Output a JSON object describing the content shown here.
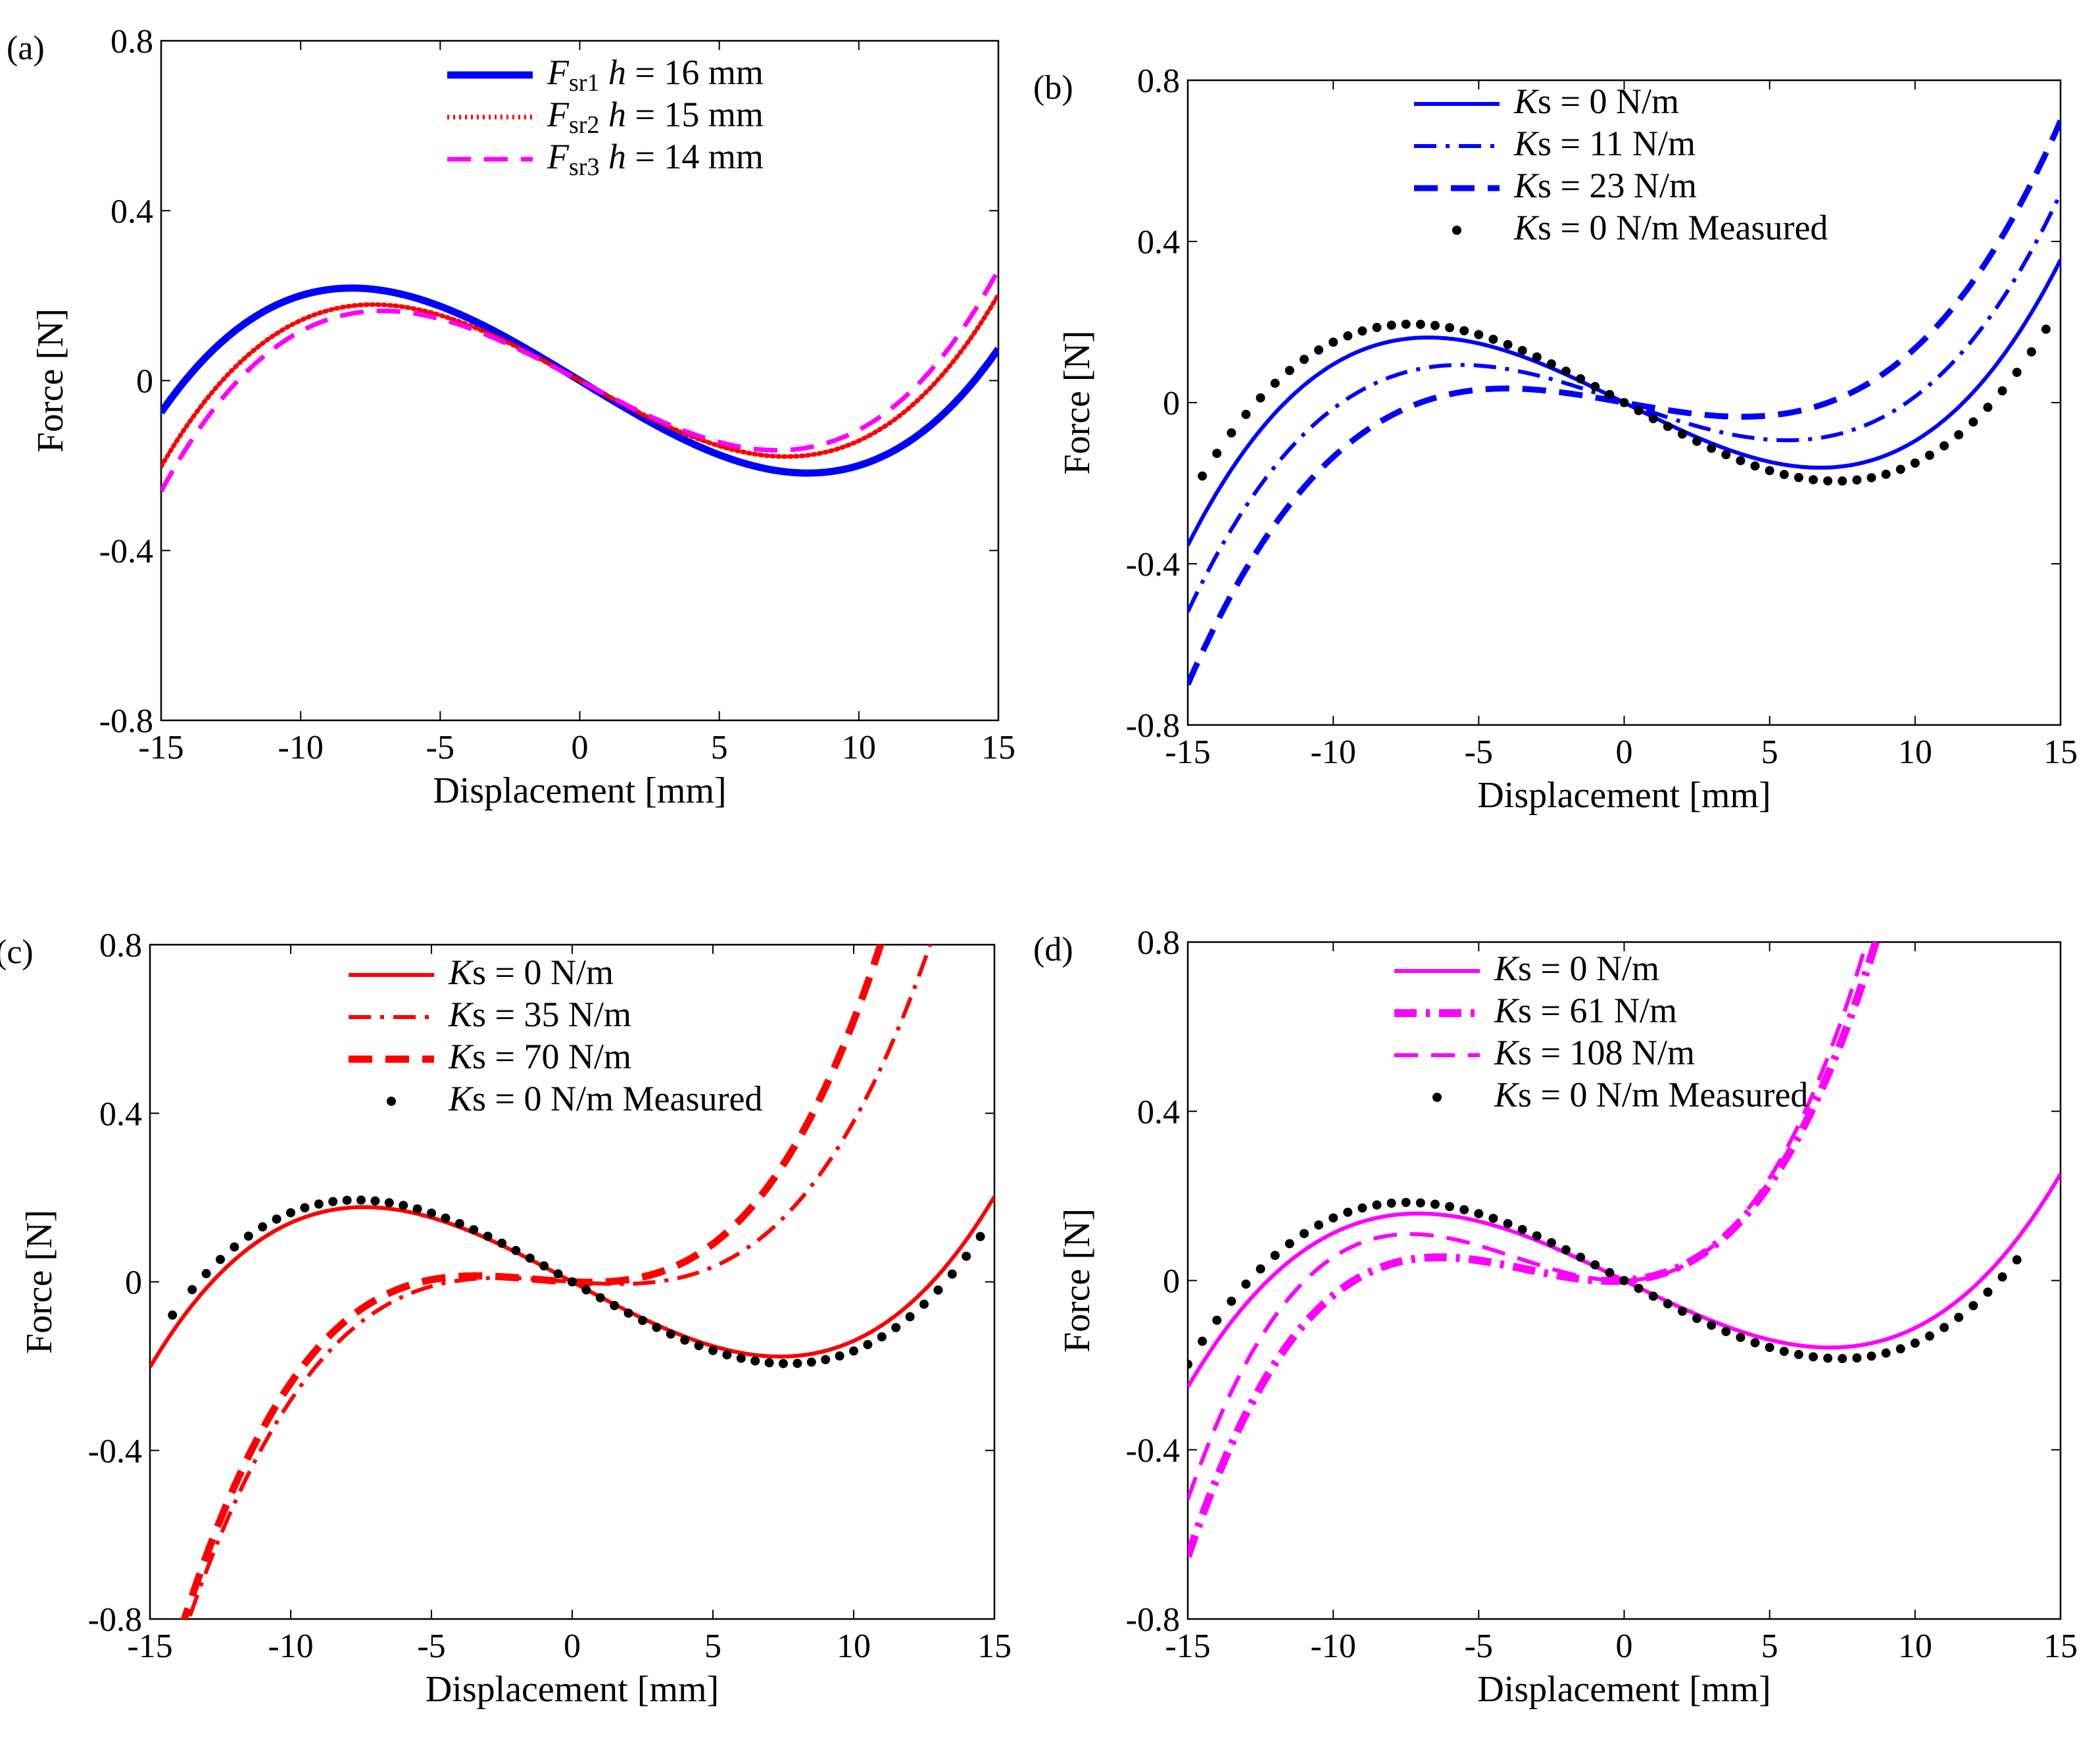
{
  "chart_data": [
    {
      "type": "line",
      "panel_label": "(a)",
      "xlabel": "Displacement [mm]",
      "ylabel": "Force [N]",
      "xlim": [
        -15,
        15
      ],
      "ylim": [
        -0.8,
        0.8
      ],
      "xticks": [
        "-15",
        "-10",
        "-5",
        "0",
        "5",
        "10",
        "15"
      ],
      "yticks": [
        "0.8",
        "0.4",
        "0",
        "-0.4",
        "-0.8"
      ],
      "series": [
        {
          "name": "F_sr1 h = 16 mm",
          "label": {
            "sym": "F",
            "sub": "sr1",
            "var": "h",
            "rest": " = 16 mm"
          },
          "color": "#0000ff",
          "style": "solid",
          "width": 11,
          "a": 0.0002,
          "b": 0.04,
          "c": 0
        },
        {
          "name": "F_sr2 h = 15 mm",
          "label": {
            "sym": "F",
            "sub": "sr2",
            "var": "h",
            "rest": " = 15 mm"
          },
          "color": "#ff0000",
          "style": "dotted",
          "width": 7,
          "a": 0.0002213,
          "b": 0.0363,
          "c": 0
        },
        {
          "name": "F_sr3 h = 14 mm",
          "label": {
            "sym": "F",
            "sub": "sr3",
            "var": "h",
            "rest": " = 14 mm"
          },
          "color": "#ff00ff",
          "style": "dashed",
          "width": 7,
          "a": 0.000232,
          "b": 0.0348,
          "c": 0
        }
      ]
    },
    {
      "type": "line",
      "panel_label": "(b)",
      "xlabel": "Displacement [mm]",
      "ylabel": "Force [N]",
      "xlim": [
        -15,
        15
      ],
      "ylim": [
        -0.8,
        0.8
      ],
      "xticks": [
        "-15",
        "-10",
        "-5",
        "0",
        "5",
        "10",
        "15"
      ],
      "yticks": [
        "0.8",
        "0.4",
        "0",
        "-0.4",
        "-0.8"
      ],
      "series": [
        {
          "name": "Ks = 0 N/m",
          "label": {
            "sym": "K",
            "rest": "s = 0 N/m"
          },
          "color": "#0000ff",
          "style": "solid",
          "width": 6,
          "a": 0.000265,
          "b": 0.036,
          "c": 0
        },
        {
          "name": "Ks = 11 N/m",
          "label": {
            "sym": "K",
            "rest": "s = 11 N/m"
          },
          "color": "#0000ff",
          "style": "dashdot",
          "width": 6,
          "a": 0.000265,
          "b": 0.025,
          "c": 0
        },
        {
          "name": "Ks = 23 N/m",
          "label": {
            "sym": "K",
            "rest": "s = 23 N/m"
          },
          "color": "#0000ff",
          "style": "dashed",
          "width": 9,
          "a": 0.000265,
          "b": 0.013,
          "c": 0
        }
      ],
      "measured": {
        "name": "Ks = 0 N/m Measured",
        "label": {
          "sym": "K",
          "rest": "s = 0 N/m Measured"
        },
        "color": "#000000",
        "a": 0.00025,
        "b": 0.04,
        "c": 0,
        "x": [
          -14.5,
          -14,
          -13.5,
          -13,
          -12.5,
          -12,
          -11.5,
          -11,
          -10.5,
          -10,
          -9.5,
          -9,
          -8.5,
          -8,
          -7.5,
          -7,
          -6.5,
          -6,
          -5.5,
          -5,
          -4.5,
          -4,
          -3.5,
          -3,
          -2.5,
          -2,
          -1.5,
          -1,
          -0.5,
          0,
          0.5,
          1,
          1.5,
          2,
          2.5,
          3,
          3.5,
          4,
          4.5,
          5,
          5.5,
          6,
          6.5,
          7,
          7.5,
          8,
          8.5,
          9,
          9.5,
          10,
          10.5,
          11,
          11.5,
          12,
          12.5,
          13,
          13.5,
          14,
          14.5
        ]
      }
    },
    {
      "type": "line",
      "panel_label": "(c)",
      "xlabel": "Displacement [mm]",
      "ylabel": "Force [N]",
      "xlim": [
        -15,
        15
      ],
      "ylim": [
        -0.8,
        0.8
      ],
      "xticks": [
        "-15",
        "-10",
        "-5",
        "0",
        "5",
        "10",
        "15"
      ],
      "yticks": [
        "0.8",
        "0.4",
        "0",
        "-0.4",
        "-0.8"
      ],
      "series": [
        {
          "name": "Ks = 0 N/m",
          "label": {
            "sym": "K",
            "rest": "s = 0 N/m"
          },
          "color": "#ff0000",
          "style": "solid",
          "width": 6,
          "a": 0.00022,
          "b": 0.036,
          "c": 0
        },
        {
          "name": "Ks = 35 N/m",
          "label": {
            "sym": "K",
            "rest": "s = 35 N/m"
          },
          "color": "#ff0000",
          "style": "dashdot",
          "width": 6,
          "a": 0.00038,
          "b": 0.0049,
          "c": 0.0005
        },
        {
          "name": "Ks = 70 N/m",
          "label": {
            "sym": "K",
            "rest": "s = 70 N/m"
          },
          "color": "#ff0000",
          "style": "dashed",
          "width": 11,
          "a": 0.00046,
          "b": 0.003,
          "c": 0.0019
        }
      ],
      "measured": {
        "name": "Ks = 0 N/m Measured",
        "label": {
          "sym": "K",
          "rest": "s = 0 N/m Measured"
        },
        "color": "#000000",
        "a": 0.000216,
        "b": 0.038,
        "c": 0,
        "x": [
          -14.2,
          -13.5,
          -13,
          -12.5,
          -12,
          -11.5,
          -11,
          -10.5,
          -10,
          -9.5,
          -9,
          -8.5,
          -8,
          -7.5,
          -7,
          -6.5,
          -6,
          -5.5,
          -5,
          -4.5,
          -4,
          -3.5,
          -3,
          -2.5,
          -2,
          -1.5,
          -1,
          -0.5,
          0,
          0.5,
          1,
          1.5,
          2,
          2.5,
          3,
          3.5,
          4,
          4.5,
          5,
          5.5,
          6,
          6.5,
          7,
          7.5,
          8,
          8.5,
          9,
          9.5,
          10,
          10.5,
          11,
          11.5,
          12,
          12.5,
          13,
          13.5,
          14,
          14.5
        ]
      }
    },
    {
      "type": "line",
      "panel_label": "(d)",
      "xlabel": "Displacement [mm]",
      "ylabel": "Force [N]",
      "xlim": [
        -15,
        15
      ],
      "ylim": [
        -0.8,
        0.8
      ],
      "xticks": [
        "-15",
        "-10",
        "-5",
        "0",
        "5",
        "10",
        "15"
      ],
      "yticks": [
        "0.8",
        "0.4",
        "0",
        "-0.4",
        "-0.8"
      ],
      "series": [
        {
          "name": "Ks = 0 N/m",
          "label": {
            "sym": "K",
            "rest": "s = 0 N/m"
          },
          "color": "#ff00ff",
          "style": "solid",
          "width": 6,
          "a": 0.000224,
          "b": 0.0336,
          "c": 0
        },
        {
          "name": "Ks = 61 N/m",
          "label": {
            "sym": "K",
            "rest": "s = 61 N/m"
          },
          "color": "#ff00ff",
          "style": "dashdot",
          "width": 12,
          "a": 0.00054,
          "b": -0.0045,
          "c": 0.0055
        },
        {
          "name": "Ks = 108 N/m",
          "label": {
            "sym": "K",
            "rest": "s = 108 N/m"
          },
          "color": "#ff00ff",
          "style": "dashed",
          "width": 6,
          "a": 0.00058,
          "b": -0.0015,
          "c": 0.0065
        }
      ],
      "measured": {
        "name": "Ks = 0 N/m Measured",
        "label": {
          "sym": "K",
          "rest": "s = 0 N/m Measured"
        },
        "color": "#000000",
        "a": 0.000224,
        "b": 0.0372,
        "c": 0,
        "x": [
          -15,
          -14.5,
          -14,
          -13.5,
          -13,
          -12.5,
          -12,
          -11.5,
          -11,
          -10.5,
          -10,
          -9.5,
          -9,
          -8.5,
          -8,
          -7.5,
          -7,
          -6.5,
          -6,
          -5.5,
          -5,
          -4.5,
          -4,
          -3.5,
          -3,
          -2.5,
          -2,
          -1.5,
          -1,
          -0.5,
          0,
          0.5,
          1,
          1.5,
          2,
          2.5,
          3,
          3.5,
          4,
          4.5,
          5,
          5.5,
          6,
          6.5,
          7,
          7.5,
          8,
          8.5,
          9,
          9.5,
          10,
          10.5,
          11,
          11.5,
          12,
          12.5,
          13,
          13.5
        ]
      }
    }
  ]
}
